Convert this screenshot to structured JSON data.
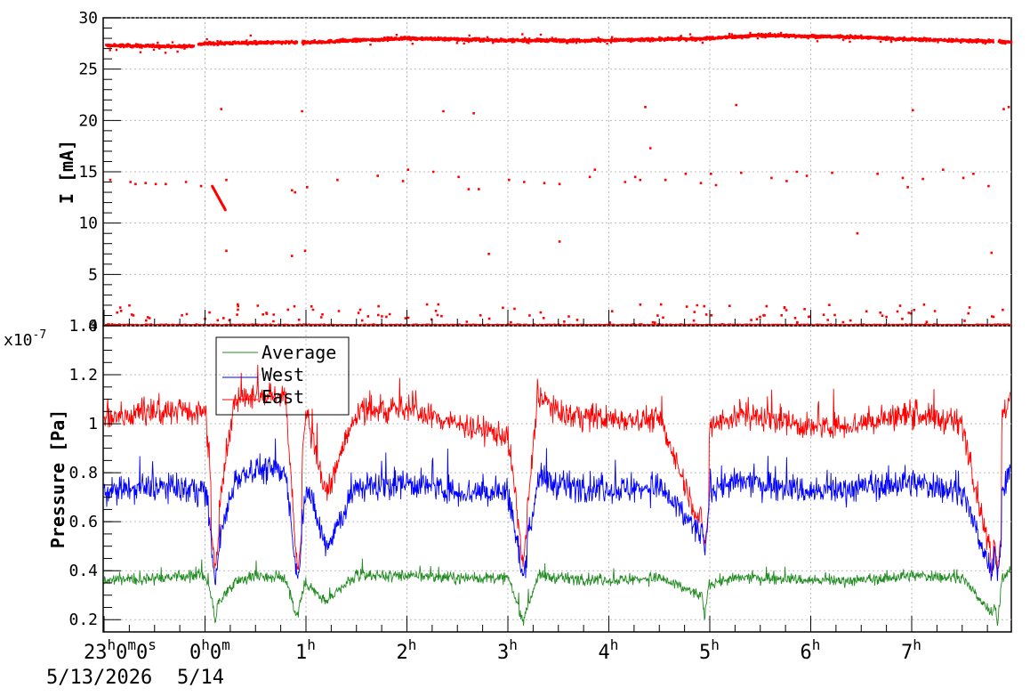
{
  "chart_data": [
    {
      "type": "scatter",
      "ylabel": "I [mA]",
      "ylim": [
        0,
        30
      ],
      "yticks": [
        "0",
        "5",
        "10",
        "15",
        "20",
        "25",
        "30"
      ],
      "grid": true,
      "x_range_hours": [
        -1,
        8
      ],
      "series": [
        {
          "color": "#ff0000",
          "main_band": [
            [
              -1,
              27.3
            ],
            [
              -0.2,
              27.2
            ],
            [
              0.0,
              27.5
            ],
            [
              0.8,
              27.6
            ],
            [
              1.0,
              27.6
            ],
            [
              2.0,
              28.0
            ],
            [
              3.0,
              27.8
            ],
            [
              4.0,
              27.8
            ],
            [
              5.0,
              28.0
            ],
            [
              5.5,
              28.3
            ],
            [
              6.5,
              28.1
            ],
            [
              7.0,
              27.9
            ],
            [
              7.8,
              27.7
            ],
            [
              8.0,
              27.6
            ]
          ],
          "main_band_gaps": [
            [
              -0.12,
              -0.08
            ],
            [
              0.9,
              0.95
            ],
            [
              7.8,
              7.85
            ]
          ],
          "stray_points": [
            [
              -0.95,
              14.2
            ],
            [
              -0.75,
              14.0
            ],
            [
              -0.7,
              13.8
            ],
            [
              -0.6,
              13.9
            ],
            [
              -0.5,
              13.8
            ],
            [
              -0.4,
              13.8
            ],
            [
              -0.2,
              14.0
            ],
            [
              -0.05,
              13.6
            ],
            [
              0.2,
              14.2
            ],
            [
              0.15,
              21.1
            ],
            [
              0.2,
              7.3
            ],
            [
              0.85,
              13.2
            ],
            [
              0.88,
              13.0
            ],
            [
              0.85,
              6.8
            ],
            [
              0.95,
              20.9
            ],
            [
              0.98,
              7.3
            ],
            [
              1.0,
              13.5
            ],
            [
              1.3,
              14.2
            ],
            [
              1.7,
              14.6
            ],
            [
              1.95,
              14.1
            ],
            [
              2.0,
              15.2
            ],
            [
              2.25,
              15.0
            ],
            [
              2.35,
              20.9
            ],
            [
              2.5,
              14.5
            ],
            [
              2.6,
              13.3
            ],
            [
              2.65,
              20.7
            ],
            [
              2.7,
              13.3
            ],
            [
              2.8,
              7.0
            ],
            [
              3.0,
              14.2
            ],
            [
              3.15,
              14.0
            ],
            [
              3.35,
              13.9
            ],
            [
              3.5,
              8.2
            ],
            [
              3.5,
              13.8
            ],
            [
              3.8,
              14.5
            ],
            [
              3.85,
              15.2
            ],
            [
              4.15,
              14.0
            ],
            [
              4.25,
              14.5
            ],
            [
              4.3,
              14.2
            ],
            [
              4.35,
              21.3
            ],
            [
              4.4,
              17.3
            ],
            [
              4.55,
              14.2
            ],
            [
              4.75,
              14.8
            ],
            [
              4.9,
              13.9
            ],
            [
              5.0,
              14.8
            ],
            [
              5.05,
              13.7
            ],
            [
              5.25,
              21.5
            ],
            [
              5.3,
              14.9
            ],
            [
              5.6,
              14.4
            ],
            [
              5.75,
              14.1
            ],
            [
              5.85,
              15.0
            ],
            [
              5.95,
              14.6
            ],
            [
              6.2,
              14.9
            ],
            [
              6.45,
              9.0
            ],
            [
              6.65,
              14.8
            ],
            [
              6.9,
              14.4
            ],
            [
              6.95,
              13.5
            ],
            [
              7.0,
              21.0
            ],
            [
              7.1,
              14.3
            ],
            [
              7.3,
              15.2
            ],
            [
              7.5,
              14.4
            ],
            [
              7.6,
              14.8
            ],
            [
              7.75,
              13.6
            ],
            [
              7.78,
              7.1
            ],
            [
              7.9,
              21.1
            ],
            [
              7.95,
              21.3
            ]
          ],
          "zero_band": 0.1
        }
      ]
    },
    {
      "type": "line",
      "ylabel": "Pressure [Pa]",
      "yscale_label": "x10",
      "yscale_exp": "-7",
      "ylim": [
        0.15,
        1.4
      ],
      "yticks": [
        "0.2",
        "0.4",
        "0.6",
        "0.8",
        "1",
        "1.2",
        "1.4"
      ],
      "grid": true,
      "legend": {
        "placement": "top-left"
      },
      "series": [
        {
          "name": "Average",
          "color": "#228b22",
          "x": [
            -1,
            -0.5,
            0,
            0.1,
            0.3,
            0.5,
            0.8,
            0.9,
            1.0,
            1.2,
            1.5,
            2.0,
            2.5,
            3.0,
            3.15,
            3.3,
            3.5,
            4.0,
            4.5,
            4.9,
            5.0,
            5.3,
            5.7,
            6.0,
            6.5,
            7.0,
            7.5,
            7.8,
            7.9,
            8.0
          ],
          "y": [
            0.36,
            0.37,
            0.38,
            0.25,
            0.36,
            0.38,
            0.37,
            0.22,
            0.35,
            0.27,
            0.38,
            0.38,
            0.37,
            0.37,
            0.2,
            0.38,
            0.37,
            0.36,
            0.37,
            0.3,
            0.35,
            0.37,
            0.37,
            0.36,
            0.36,
            0.38,
            0.37,
            0.22,
            0.38,
            0.39
          ],
          "noise": 0.04,
          "spikes": [
            [
              0.1,
              0.15
            ],
            [
              0.92,
              0.18
            ],
            [
              3.15,
              0.17
            ],
            [
              4.95,
              0.18
            ],
            [
              7.85,
              0.16
            ]
          ]
        },
        {
          "name": "West",
          "color": "#0000ff",
          "x": [
            -1,
            -0.5,
            0,
            0.1,
            0.3,
            0.5,
            0.8,
            0.9,
            1.0,
            1.2,
            1.5,
            2.0,
            2.5,
            3.0,
            3.15,
            3.3,
            3.5,
            4.0,
            4.5,
            4.9,
            5.0,
            5.3,
            5.7,
            6.0,
            6.5,
            7.0,
            7.5,
            7.8,
            7.9,
            8.0
          ],
          "y": [
            0.72,
            0.74,
            0.73,
            0.45,
            0.78,
            0.82,
            0.8,
            0.4,
            0.75,
            0.5,
            0.74,
            0.76,
            0.72,
            0.72,
            0.38,
            0.78,
            0.75,
            0.73,
            0.74,
            0.55,
            0.74,
            0.76,
            0.75,
            0.72,
            0.74,
            0.76,
            0.72,
            0.38,
            0.74,
            0.82
          ],
          "noise": 0.1,
          "spikes": [
            [
              0.1,
              0.32
            ],
            [
              0.92,
              0.34
            ],
            [
              3.15,
              0.35
            ],
            [
              4.95,
              0.45
            ],
            [
              7.85,
              0.35
            ]
          ]
        },
        {
          "name": "East",
          "color": "#ff0000",
          "x": [
            -1,
            -0.5,
            0,
            0.1,
            0.3,
            0.5,
            0.8,
            0.9,
            1.0,
            1.2,
            1.5,
            2.0,
            2.5,
            3.0,
            3.15,
            3.3,
            3.5,
            4.0,
            4.5,
            4.9,
            5.0,
            5.3,
            5.7,
            6.0,
            6.5,
            7.0,
            7.5,
            7.8,
            7.9,
            8.0
          ],
          "y": [
            1.02,
            1.05,
            1.05,
            0.55,
            1.1,
            1.12,
            1.1,
            0.5,
            1.05,
            0.7,
            1.05,
            1.06,
            1.0,
            0.95,
            0.45,
            1.12,
            1.04,
            1.02,
            1.02,
            0.6,
            1.0,
            1.03,
            1.02,
            0.98,
            1.0,
            1.04,
            1.0,
            0.42,
            1.05,
            1.1
          ],
          "noise": 0.09,
          "spikes": [
            [
              0.1,
              0.38
            ],
            [
              0.92,
              0.38
            ],
            [
              3.15,
              0.4
            ],
            [
              4.95,
              0.47
            ],
            [
              7.85,
              0.38
            ]
          ]
        }
      ]
    }
  ],
  "time_axis": {
    "start_label_hour": "23",
    "start_label_rest": "0",
    "start_m": "m",
    "start_zero2": "0",
    "start_s": "s",
    "midnight_hour": "0",
    "midnight_h": "h",
    "midnight_zero": "0",
    "midnight_m": "m",
    "hour_labels": [
      {
        "value": "1",
        "unit": "h"
      },
      {
        "value": "2",
        "unit": "h"
      },
      {
        "value": "3",
        "unit": "h"
      },
      {
        "value": "4",
        "unit": "h"
      },
      {
        "value": "5",
        "unit": "h"
      },
      {
        "value": "6",
        "unit": "h"
      },
      {
        "value": "7",
        "unit": "h"
      }
    ],
    "start_date": "5/13/2026",
    "midnight_date": "5/14"
  }
}
